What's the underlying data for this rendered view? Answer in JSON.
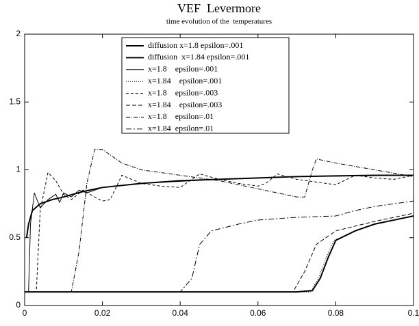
{
  "chart_data": {
    "type": "line",
    "title": "VEF  Levermore",
    "subtitle": "time evolution of the  temperatures",
    "xlim": [
      0,
      0.1
    ],
    "ylim": [
      0,
      2
    ],
    "xticks": [
      0,
      0.02,
      0.04,
      0.06,
      0.08,
      0.1
    ],
    "yticks": [
      0,
      0.5,
      1,
      1.5,
      2
    ],
    "legend": "upper left",
    "series": [
      {
        "name": "diffusion x=1.8 epsilon=.001",
        "color": "#000000",
        "width": 2,
        "dash": "none",
        "x": [
          0.0005,
          0.001,
          0.002,
          0.004,
          0.007,
          0.01,
          0.015,
          0.02,
          0.03,
          0.04,
          0.05,
          0.06,
          0.07,
          0.08,
          0.09,
          0.1
        ],
        "values": [
          0.5,
          0.6,
          0.7,
          0.75,
          0.78,
          0.8,
          0.84,
          0.87,
          0.9,
          0.92,
          0.93,
          0.94,
          0.95,
          0.955,
          0.96,
          0.96
        ]
      },
      {
        "name": "diffusion  x=1.84 epsilon=.001",
        "color": "#000000",
        "width": 2,
        "dash": "none",
        "x": [
          0,
          0.07,
          0.074,
          0.076,
          0.078,
          0.08,
          0.085,
          0.09,
          0.095,
          0.1
        ],
        "values": [
          0.1,
          0.1,
          0.11,
          0.2,
          0.35,
          0.48,
          0.55,
          0.6,
          0.63,
          0.66
        ]
      },
      {
        "name": "x=1.8    epsilon=.001",
        "color": "#000000",
        "width": 1,
        "dash": "none",
        "x": [
          0,
          0.001,
          0.0015,
          0.0025,
          0.004,
          0.006,
          0.008,
          0.009,
          0.01,
          0.012,
          0.014,
          0.016,
          0.02,
          0.03,
          0.05,
          0.07,
          0.1
        ],
        "values": [
          0.1,
          0.1,
          0.6,
          0.83,
          0.72,
          0.78,
          0.82,
          0.76,
          0.83,
          0.8,
          0.85,
          0.83,
          0.87,
          0.9,
          0.93,
          0.95,
          0.96
        ]
      },
      {
        "name": "x=1.84    epsilon=.001",
        "color": "#000000",
        "width": 1,
        "dash": "1,2",
        "x": [
          0,
          0.0735,
          0.0755,
          0.0775,
          0.0795,
          0.085,
          0.09,
          0.095,
          0.1
        ],
        "values": [
          0.1,
          0.1,
          0.2,
          0.35,
          0.48,
          0.55,
          0.6,
          0.63,
          0.66
        ]
      },
      {
        "name": "x=1.8    epsilon=.003",
        "color": "#000000",
        "width": 1,
        "dash": "4,3",
        "x": [
          0,
          0.003,
          0.004,
          0.006,
          0.008,
          0.01,
          0.012,
          0.015,
          0.018,
          0.02,
          0.022,
          0.025,
          0.03,
          0.035,
          0.04,
          0.045,
          0.05,
          0.055,
          0.06,
          0.062,
          0.065,
          0.07,
          0.075,
          0.08,
          0.085,
          0.09,
          0.095,
          0.1
        ],
        "values": [
          0.1,
          0.1,
          0.7,
          0.98,
          0.92,
          0.82,
          0.78,
          0.85,
          0.8,
          0.77,
          0.78,
          0.96,
          0.9,
          0.88,
          0.87,
          0.97,
          0.93,
          0.9,
          0.88,
          0.9,
          0.97,
          0.93,
          0.91,
          0.89,
          0.96,
          0.94,
          0.93,
          0.96
        ]
      },
      {
        "name": "x=1.84    epsilon=.003",
        "color": "#000000",
        "width": 1,
        "dash": "6,3",
        "x": [
          0,
          0.069,
          0.072,
          0.075,
          0.08,
          0.09,
          0.1
        ],
        "values": [
          0.1,
          0.1,
          0.25,
          0.45,
          0.55,
          0.62,
          0.68
        ]
      },
      {
        "name": "x=1.8    epsilon=.01",
        "color": "#000000",
        "width": 1,
        "dash": "6,2,1,2",
        "x": [
          0,
          0.012,
          0.014,
          0.016,
          0.018,
          0.02,
          0.025,
          0.03,
          0.04,
          0.05,
          0.06,
          0.065,
          0.07,
          0.072,
          0.074,
          0.075,
          0.08,
          0.09,
          0.1
        ],
        "values": [
          0.1,
          0.1,
          0.4,
          0.9,
          1.15,
          1.15,
          1.05,
          1.0,
          0.96,
          0.92,
          0.86,
          0.83,
          0.8,
          0.8,
          1.0,
          1.08,
          1.05,
          1.0,
          0.95
        ]
      },
      {
        "name": "x=1.84  epsilon=.01",
        "color": "#000000",
        "width": 1,
        "dash": "8,3,2,3",
        "x": [
          0,
          0.04,
          0.043,
          0.045,
          0.048,
          0.055,
          0.06,
          0.07,
          0.08,
          0.085,
          0.09,
          0.1
        ],
        "values": [
          0.1,
          0.1,
          0.2,
          0.45,
          0.55,
          0.6,
          0.63,
          0.65,
          0.66,
          0.7,
          0.73,
          0.77
        ]
      }
    ]
  }
}
